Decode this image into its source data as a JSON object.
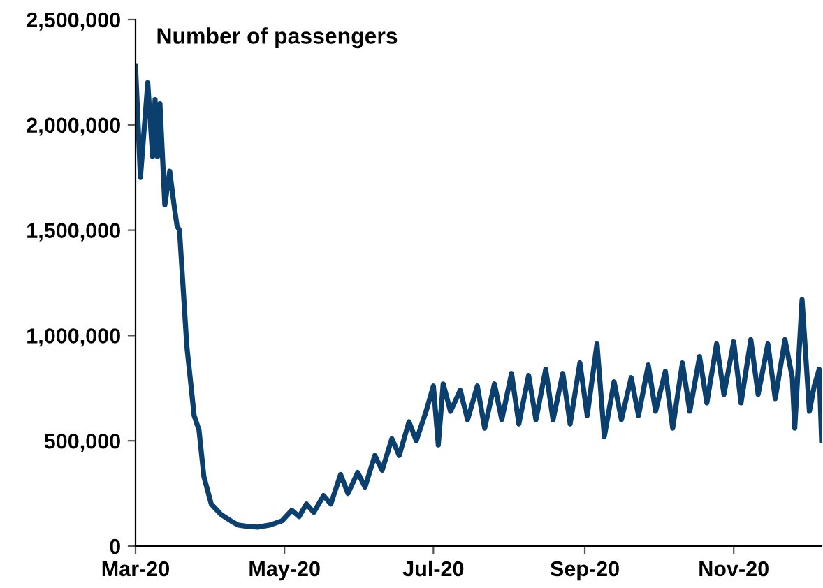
{
  "chart_data": {
    "type": "line",
    "title": "Number of passengers",
    "x": [
      "2020-03-01",
      "2020-03-03",
      "2020-03-06",
      "2020-03-08",
      "2020-03-09",
      "2020-03-10",
      "2020-03-11",
      "2020-03-13",
      "2020-03-15",
      "2020-03-17",
      "2020-03-18",
      "2020-03-19",
      "2020-03-22",
      "2020-03-25",
      "2020-03-27",
      "2020-03-29",
      "2020-04-01",
      "2020-04-05",
      "2020-04-09",
      "2020-04-12",
      "2020-04-15",
      "2020-04-20",
      "2020-04-25",
      "2020-04-30",
      "2020-05-04",
      "2020-05-07",
      "2020-05-10",
      "2020-05-13",
      "2020-05-17",
      "2020-05-20",
      "2020-05-24",
      "2020-05-27",
      "2020-05-31",
      "2020-06-03",
      "2020-06-07",
      "2020-06-10",
      "2020-06-14",
      "2020-06-17",
      "2020-06-21",
      "2020-06-24",
      "2020-06-28",
      "2020-07-01",
      "2020-07-03",
      "2020-07-05",
      "2020-07-08",
      "2020-07-12",
      "2020-07-15",
      "2020-07-19",
      "2020-07-22",
      "2020-07-26",
      "2020-07-29",
      "2020-08-02",
      "2020-08-05",
      "2020-08-09",
      "2020-08-12",
      "2020-08-16",
      "2020-08-19",
      "2020-08-23",
      "2020-08-26",
      "2020-08-30",
      "2020-09-02",
      "2020-09-06",
      "2020-09-09",
      "2020-09-13",
      "2020-09-16",
      "2020-09-20",
      "2020-09-23",
      "2020-09-27",
      "2020-09-30",
      "2020-10-04",
      "2020-10-07",
      "2020-10-11",
      "2020-10-14",
      "2020-10-18",
      "2020-10-21",
      "2020-10-25",
      "2020-10-28",
      "2020-11-01",
      "2020-11-04",
      "2020-11-08",
      "2020-11-11",
      "2020-11-15",
      "2020-11-18",
      "2020-11-22",
      "2020-11-25",
      "2020-11-26",
      "2020-11-29",
      "2020-12-02",
      "2020-12-04",
      "2020-12-06",
      "2020-12-07"
    ],
    "series": [
      {
        "color": "#0b3f6e",
        "values": [
          2280000,
          1750000,
          2200000,
          1850000,
          2120000,
          1850000,
          2100000,
          1620000,
          1780000,
          1600000,
          1520000,
          1500000,
          950000,
          620000,
          550000,
          330000,
          200000,
          150000,
          120000,
          100000,
          95000,
          90000,
          100000,
          120000,
          170000,
          140000,
          200000,
          160000,
          240000,
          200000,
          340000,
          250000,
          350000,
          280000,
          430000,
          360000,
          510000,
          430000,
          590000,
          500000,
          640000,
          760000,
          480000,
          770000,
          640000,
          740000,
          600000,
          760000,
          560000,
          770000,
          600000,
          820000,
          580000,
          810000,
          600000,
          840000,
          600000,
          820000,
          580000,
          870000,
          620000,
          960000,
          520000,
          780000,
          600000,
          800000,
          620000,
          860000,
          640000,
          830000,
          560000,
          870000,
          640000,
          900000,
          680000,
          960000,
          720000,
          970000,
          680000,
          980000,
          720000,
          960000,
          700000,
          980000,
          800000,
          560000,
          1170000,
          640000,
          760000,
          840000,
          500000
        ]
      }
    ],
    "xlim": [
      "2020-03-01",
      "2020-12-07"
    ],
    "xticks": [
      {
        "value": "2020-03-01",
        "label": "Mar-20"
      },
      {
        "value": "2020-05-01",
        "label": "May-20"
      },
      {
        "value": "2020-07-01",
        "label": "Jul-20"
      },
      {
        "value": "2020-09-01",
        "label": "Sep-20"
      },
      {
        "value": "2020-11-01",
        "label": "Nov-20"
      }
    ],
    "ylim": [
      0,
      2500000
    ],
    "yticks": [
      0,
      {
        "value": 500000,
        "label": "500,000"
      },
      {
        "value": 1000000,
        "label": "1,000,000"
      },
      {
        "value": 1500000,
        "label": "1,500,000"
      },
      {
        "value": 2000000,
        "label": "2,000,000"
      },
      {
        "value": 2500000,
        "label": "2,500,000"
      }
    ],
    "grid": false,
    "legend": false,
    "marker": "none",
    "line_style": "solid"
  }
}
